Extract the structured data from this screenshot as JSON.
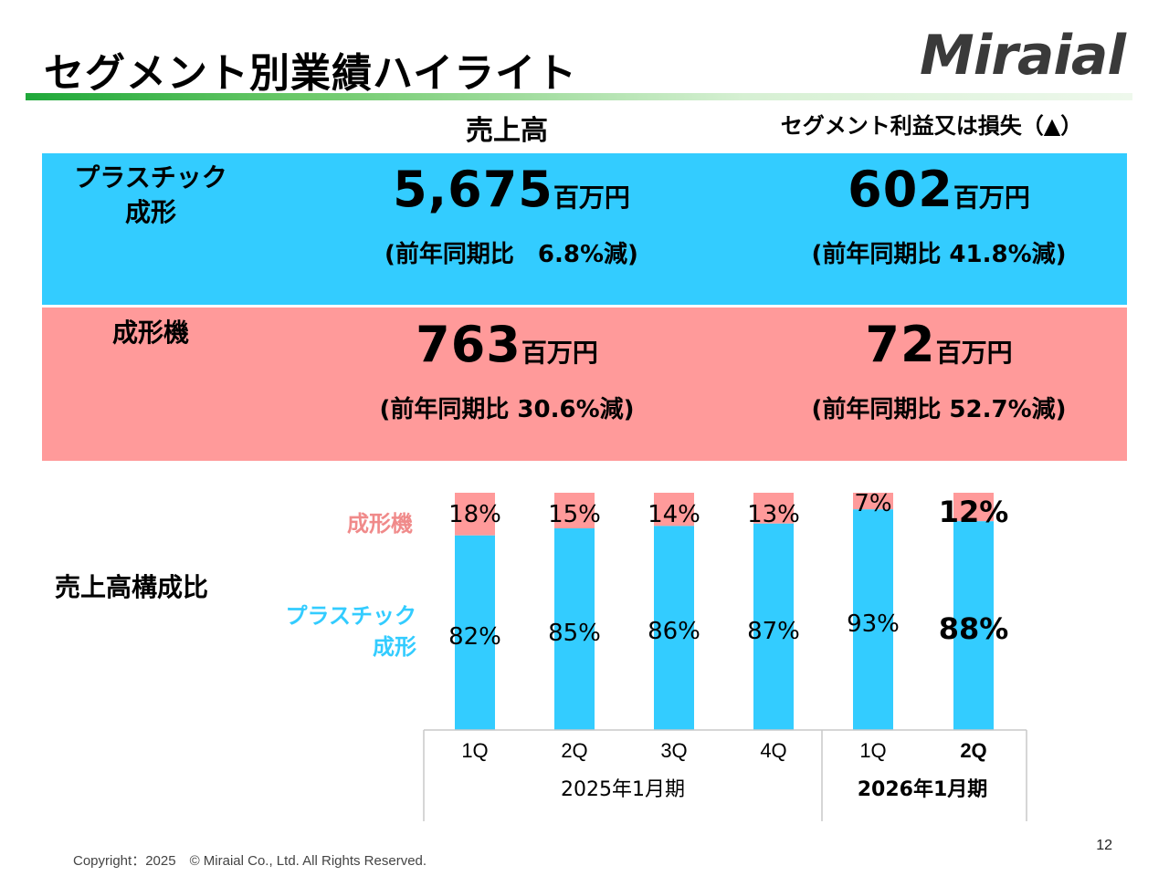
{
  "title": "セグメント別業績ハイライト",
  "logo": "Miraial",
  "headers": {
    "sales": "売上高",
    "profit": "セグメント利益又は損失（▲）"
  },
  "segments": {
    "plastic": {
      "label_line1": "プラスチック",
      "label_line2": "成形",
      "sales_value": "5,675",
      "sales_unit": "百万円",
      "sales_yoy": "(前年同期比　6.8%減)",
      "profit_value": "602",
      "profit_unit": "百万円",
      "profit_yoy": "(前年同期比  41.8%減)"
    },
    "molding": {
      "label": "成形機",
      "sales_value": "763",
      "sales_unit": "百万円",
      "sales_yoy": "(前年同期比  30.6%減)",
      "profit_value": "72",
      "profit_unit": "百万円",
      "profit_yoy": "(前年同期比  52.7%減)"
    }
  },
  "composition": {
    "label": "売上高構成比",
    "legend_molding": "成形機",
    "legend_plastic_line1": "プラスチック",
    "legend_plastic_line2": "成形"
  },
  "colors": {
    "plastic": "#33ccff",
    "molding": "#ff9a9a",
    "molding_text": "#f08a8a",
    "accent_green": "#1fa83a"
  },
  "chart_data": {
    "type": "bar",
    "stacked": true,
    "categories": [
      "1Q",
      "2Q",
      "3Q",
      "4Q",
      "1Q",
      "2Q"
    ],
    "groups": [
      {
        "label": "2025年1月期",
        "categories": [
          0,
          1,
          2,
          3
        ]
      },
      {
        "label": "2026年1月期",
        "categories": [
          4,
          5
        ]
      }
    ],
    "series": [
      {
        "name": "プラスチック成形",
        "values": [
          82,
          85,
          86,
          87,
          93,
          88
        ]
      },
      {
        "name": "成形機",
        "values": [
          18,
          15,
          14,
          13,
          7,
          12
        ]
      }
    ],
    "value_suffix": "%",
    "highlight_index": 5,
    "ylim": [
      0,
      100
    ]
  },
  "footer": "Copyright：2025　© Miraial Co., Ltd. All Rights Reserved.",
  "page_number": "12"
}
